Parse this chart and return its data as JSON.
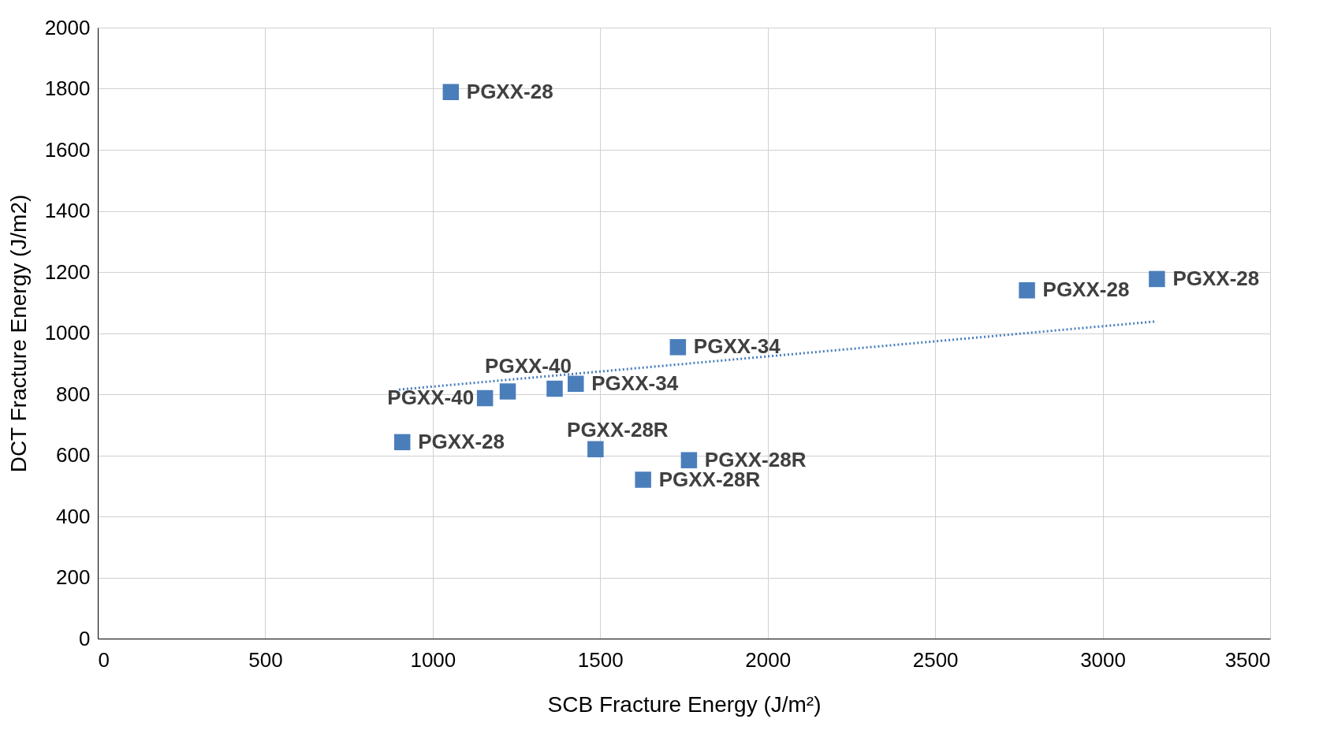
{
  "chart_data": {
    "type": "scatter",
    "xlabel": "SCB Fracture Energy (J/m²)",
    "ylabel": "DCT Fracture Energy (J/m2)",
    "xlim": [
      0,
      3500
    ],
    "xticks": [
      0,
      500,
      1000,
      1500,
      2000,
      2500,
      3000,
      3500
    ],
    "ylim": [
      0,
      2000
    ],
    "yticks": [
      0,
      200,
      400,
      600,
      800,
      1000,
      1200,
      1400,
      1600,
      1800,
      2000
    ],
    "grid": true,
    "series": [
      {
        "color": "#4a7ebb",
        "marker": "square",
        "x": [
          1054,
          909,
          1156,
          1224,
          1364,
          1427,
          1732,
          1486,
          1765,
          1628,
          2774,
          3162
        ],
        "values": [
          1789,
          643,
          787,
          809,
          818,
          834,
          954,
          620,
          584,
          520,
          1140,
          1177
        ],
        "value_labels": [
          "PGXX-28",
          "PGXX-28",
          "PGXX-40",
          "PGXX-40",
          null,
          "PGXX-34",
          "PGXX-34",
          "PGXX-28R",
          "PGXX-28R",
          "PGXX-28R",
          "PGXX-28",
          "PGXX-28"
        ]
      },
      {
        "type": "line",
        "color": "#4a7ebb",
        "line_style": "dotted",
        "marker": "none",
        "x": [
          899,
          3157
        ],
        "values": [
          815,
          1038
        ]
      }
    ]
  }
}
